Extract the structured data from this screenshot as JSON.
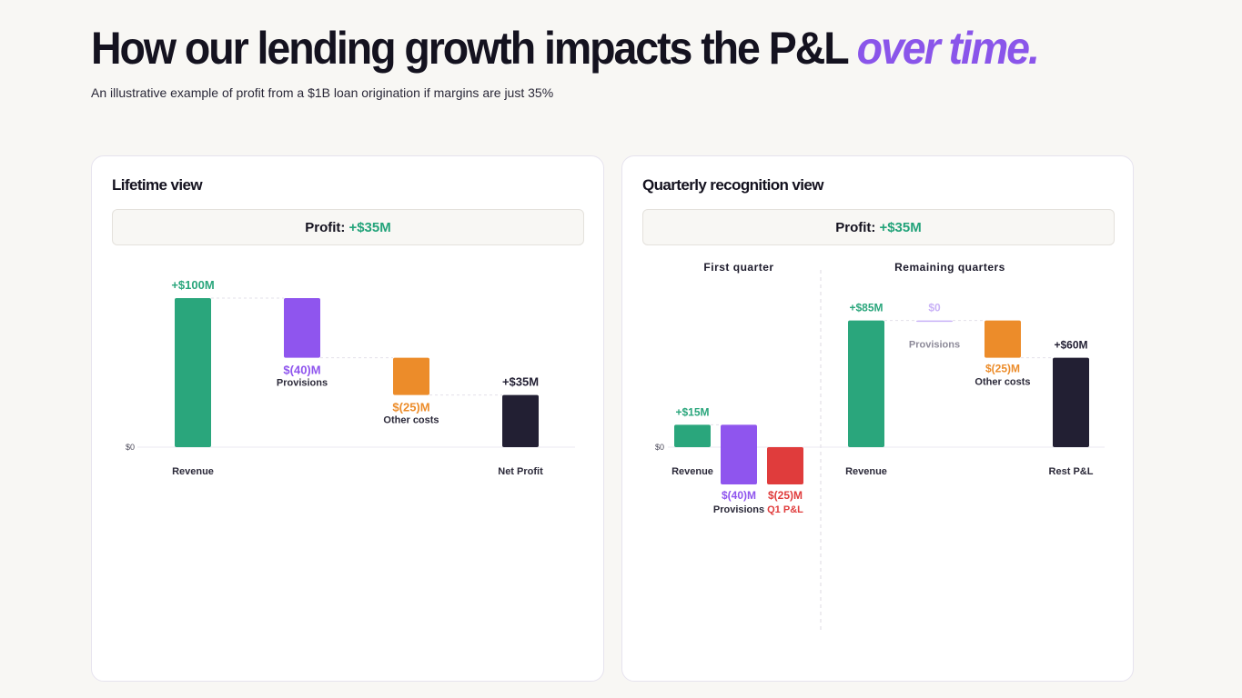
{
  "header": {
    "title_main": "How our lending growth impacts the P&L",
    "title_accent": "over time.",
    "subtitle": "An illustrative example of profit from a $1B loan origination if margins are just 35%"
  },
  "colors": {
    "green": "#2aa67c",
    "purple": "#8f55ee",
    "orange": "#ec8c2a",
    "dark": "#221f33",
    "red": "#e03c3c",
    "accent": "#8a55ea",
    "profit_green": "#23a37a"
  },
  "lifetime": {
    "card_title": "Lifetime view",
    "profit_label": "Profit:",
    "profit_value": "+$35M"
  },
  "quarterly": {
    "card_title": "Quarterly recognition view",
    "profit_label": "Profit:",
    "profit_value": "+$35M",
    "section_first": "First quarter",
    "section_remaining": "Remaining quarters"
  },
  "chart_data": [
    {
      "type": "waterfall",
      "title": "Lifetime view",
      "zero_label": "$0",
      "items": [
        {
          "name": "Revenue",
          "start": 0,
          "end": 100,
          "value_label": "+$100M",
          "sub_label": "",
          "category_label": "Revenue",
          "color": "green"
        },
        {
          "name": "Provisions",
          "start": 100,
          "end": 60,
          "value_label": "$(40)M",
          "sub_label": "Provisions",
          "category_label": "",
          "color": "purple"
        },
        {
          "name": "Other costs",
          "start": 60,
          "end": 35,
          "value_label": "$(25)M",
          "sub_label": "Other costs",
          "category_label": "",
          "color": "orange"
        },
        {
          "name": "Net Profit",
          "start": 0,
          "end": 35,
          "value_label": "+$35M",
          "sub_label": "",
          "category_label": "Net Profit",
          "color": "dark"
        }
      ]
    },
    {
      "type": "waterfall",
      "title": "Quarterly recognition view",
      "zero_label": "$0",
      "sections": [
        "First quarter",
        "Remaining quarters"
      ],
      "items": [
        {
          "section": "First quarter",
          "name": "Revenue",
          "start": 0,
          "end": 15,
          "value_label": "+$15M",
          "sub_label": "",
          "category_label": "Revenue",
          "color": "green"
        },
        {
          "section": "First quarter",
          "name": "Provisions",
          "start": 15,
          "end": -25,
          "value_label": "$(40)M",
          "sub_label": "Provisions",
          "category_label": "",
          "color": "purple"
        },
        {
          "section": "First quarter",
          "name": "Q1 P&L",
          "start": 0,
          "end": -25,
          "value_label": "$(25)M",
          "sub_label": "Q1 P&L",
          "category_label": "",
          "color": "red"
        },
        {
          "section": "Remaining quarters",
          "name": "Revenue",
          "start": 0,
          "end": 85,
          "value_label": "+$85M",
          "sub_label": "",
          "category_label": "Revenue",
          "color": "green"
        },
        {
          "section": "Remaining quarters",
          "name": "Provisions",
          "start": 85,
          "end": 85,
          "value_label": "$0",
          "sub_label": "Provisions",
          "category_label": "",
          "color": "purple"
        },
        {
          "section": "Remaining quarters",
          "name": "Other costs",
          "start": 85,
          "end": 60,
          "value_label": "$(25)M",
          "sub_label": "Other costs",
          "category_label": "",
          "color": "orange"
        },
        {
          "section": "Remaining quarters",
          "name": "Rest P&L",
          "start": 0,
          "end": 60,
          "value_label": "+$60M",
          "sub_label": "",
          "category_label": "Rest P&L",
          "color": "dark"
        }
      ]
    }
  ]
}
